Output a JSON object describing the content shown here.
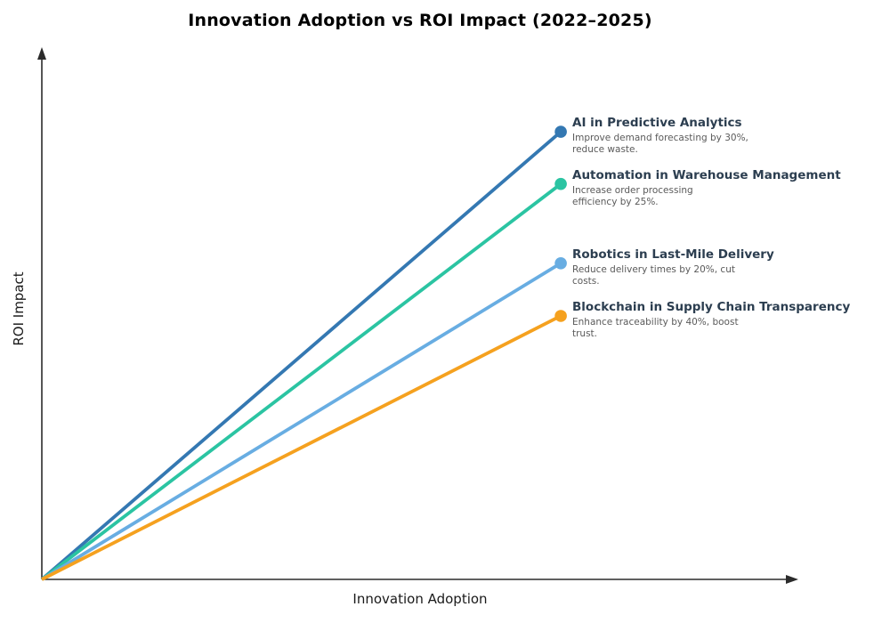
{
  "chart_data": {
    "type": "line",
    "title": "Innovation Adoption vs ROI Impact (2022–2025)",
    "xlabel": "Innovation Adoption",
    "ylabel": "ROI Impact",
    "axes": {
      "ticks_visible": false,
      "grid": false,
      "arrowed": true,
      "axis_color": "#2b2b2b",
      "x_range_normalized": [
        0,
        1
      ],
      "y_range_normalized": [
        0,
        1
      ]
    },
    "legend_position": "right-of-endpoints",
    "series": [
      {
        "name": "AI in Predictive Analytics",
        "description_lines": [
          "Improve demand forecasting by 30%,",
          "reduce waste."
        ],
        "color": "#3478b2",
        "points": [
          {
            "adoption": 0.0,
            "roi": 0.0
          },
          {
            "adoption": 0.686,
            "roi": 0.841
          }
        ]
      },
      {
        "name": "Automation in Warehouse Management",
        "description_lines": [
          "Increase order processing",
          "efficiency by 25%."
        ],
        "color": "#2bc4a2",
        "points": [
          {
            "adoption": 0.0,
            "roi": 0.0
          },
          {
            "adoption": 0.686,
            "roi": 0.743
          }
        ]
      },
      {
        "name": "Robotics in Last-Mile Delivery",
        "description_lines": [
          "Reduce delivery times by 20%, cut",
          "costs."
        ],
        "color": "#68ade2",
        "points": [
          {
            "adoption": 0.0,
            "roi": 0.0
          },
          {
            "adoption": 0.686,
            "roi": 0.594
          }
        ]
      },
      {
        "name": "Blockchain in Supply Chain Transparency",
        "description_lines": [
          "Enhance traceability by 40%, boost",
          "trust."
        ],
        "color": "#f5a11f",
        "points": [
          {
            "adoption": 0.0,
            "roi": 0.0
          },
          {
            "adoption": 0.686,
            "roi": 0.495
          }
        ]
      }
    ]
  }
}
